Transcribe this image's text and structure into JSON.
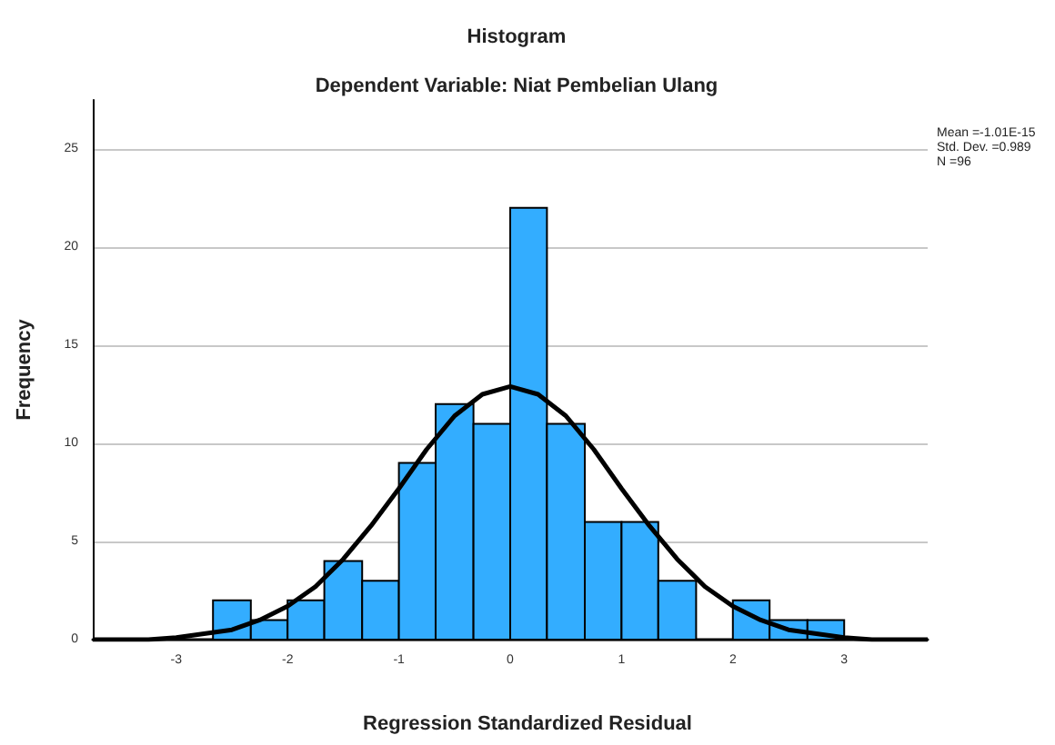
{
  "chart_data": {
    "type": "histogram",
    "title": "Histogram",
    "subtitle": "Dependent Variable: Niat Pembelian Ulang",
    "xlabel": "Regression Standardized Residual",
    "ylabel": "Frequency",
    "bins": [
      -2.67,
      -2.33,
      -2,
      -1.67,
      -1.33,
      -1,
      -0.67,
      -0.33,
      0,
      0.33,
      0.67,
      1,
      1.33,
      1.67,
      2,
      2.33,
      2.67,
      3
    ],
    "values": [
      2,
      1,
      2,
      4,
      3,
      9,
      12,
      11,
      22,
      11,
      6,
      6,
      3,
      0,
      2,
      1,
      1
    ],
    "color": "#33adff",
    "series": [
      {
        "type": "line",
        "color": "#000000",
        "x": [
          -3.75,
          -3.5,
          -3.25,
          -3,
          -2.75,
          -2.5,
          -2.25,
          -2,
          -1.75,
          -1.5,
          -1.25,
          -1,
          -0.75,
          -0.5,
          -0.25,
          0,
          0.25,
          0.5,
          0.75,
          1,
          1.25,
          1.5,
          1.75,
          2,
          2.25,
          2.5,
          2.75,
          3,
          3.25,
          3.5,
          3.75
        ],
        "values": [
          0,
          0,
          0,
          0.1,
          0.3,
          0.5,
          1,
          1.7,
          2.7,
          4.1,
          5.8,
          7.7,
          9.7,
          11.4,
          12.5,
          12.9,
          12.5,
          11.4,
          9.7,
          7.7,
          5.8,
          4.1,
          2.7,
          1.7,
          1,
          0.5,
          0.3,
          0.1,
          0,
          0,
          0
        ]
      }
    ],
    "xlim": [
      -3.75,
      3.75
    ],
    "xticks": [
      -3,
      -2,
      -1,
      0,
      1,
      2,
      3
    ],
    "ylim": [
      0,
      27.5
    ],
    "yticks": [
      0,
      5,
      10,
      15,
      20,
      25
    ],
    "grid": "y",
    "marker": "none",
    "line_style": "solid",
    "annotations": [
      "Mean =-1.01E-15",
      "Std. Dev. =0.989",
      "N =96"
    ]
  }
}
